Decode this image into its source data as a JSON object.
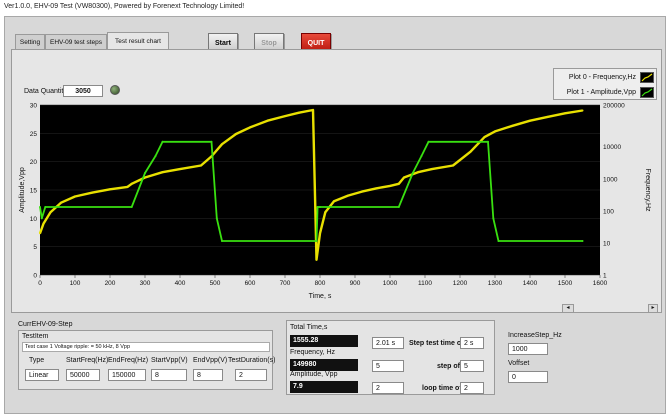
{
  "window": {
    "title": "Ver1.0.0, EHV-09 Test (VW80300), Powered by Forenext Technology Limited!"
  },
  "toolbar": {
    "start_label": "Start",
    "stop_label": "Stop",
    "quit_label": "QUIT"
  },
  "tabs": [
    {
      "label": "Setting",
      "active": false
    },
    {
      "label": "EHV-09 test steps",
      "active": false
    },
    {
      "label": "Test result chart",
      "active": true
    }
  ],
  "data_quantity": {
    "label": "Data Quantity",
    "value": "3050"
  },
  "legend": [
    {
      "label": "Plot 0 - Frequency,Hz",
      "color": "#e8e000"
    },
    {
      "label": "Plot 1 - Amplitude,Vpp",
      "color": "#39e010"
    }
  ],
  "chart_data": {
    "type": "line",
    "title": "",
    "xlabel": "Time, s",
    "ylabel_left": "Amplitude,Vpp",
    "ylabel_right": "Frequency,Hz",
    "xlim": [
      0,
      1600
    ],
    "ylim_left": [
      0,
      30
    ],
    "ylim_right": [
      1,
      200000
    ],
    "right_scale": "log",
    "x_ticks": [
      "0",
      "100",
      "200",
      "300",
      "400",
      "500",
      "600",
      "700",
      "800",
      "900",
      "1000",
      "1100",
      "1200",
      "1300",
      "1400",
      "1500",
      "1600"
    ],
    "y_left_ticks": [
      "0",
      "5",
      "10",
      "15",
      "20",
      "25",
      "30"
    ],
    "y_right_ticks": [
      "1",
      "10",
      "100",
      "1000",
      "10000",
      "200000"
    ],
    "background": "#000000",
    "series": [
      {
        "name": "Plot 0 - Frequency,Hz",
        "color": "#e8e000",
        "axis": "right",
        "x": [
          0,
          10,
          30,
          60,
          100,
          150,
          200,
          250,
          262,
          300,
          350,
          400,
          460,
          490,
          520,
          560,
          600,
          650,
          700,
          740,
          780,
          790,
          800,
          815,
          840,
          880,
          920,
          960,
          1000,
          1025,
          1040,
          1080,
          1120,
          1180,
          1230,
          1270,
          1300,
          1350,
          1400,
          1450,
          1500,
          1550
        ],
        "y": [
          20,
          40,
          90,
          180,
          280,
          370,
          470,
          560,
          700,
          1100,
          1600,
          2000,
          2600,
          5000,
          12000,
          25000,
          40000,
          65000,
          90000,
          115000,
          140000,
          3,
          20,
          90,
          200,
          300,
          400,
          500,
          600,
          700,
          1100,
          1600,
          2000,
          2600,
          7000,
          20000,
          30000,
          45000,
          65000,
          85000,
          110000,
          135000
        ]
      },
      {
        "name": "Plot 1 - Amplitude,Vpp",
        "color": "#39e010",
        "axis": "left",
        "x": [
          0,
          5,
          15,
          262,
          300,
          330,
          350,
          490,
          505,
          520,
          790,
          793,
          800,
          1025,
          1065,
          1090,
          1110,
          1280,
          1295,
          1310,
          1550
        ],
        "y": [
          12,
          10,
          12,
          12,
          18,
          21,
          23.5,
          23.5,
          10,
          6,
          6,
          12,
          12,
          12,
          18,
          21,
          23.5,
          23.5,
          10,
          6,
          6
        ]
      }
    ]
  },
  "step_panel": {
    "title": "CurrEHV-09-Step",
    "testitem_label": "TestItem",
    "testitem_desc": "Test case 1 Voltage ripple: = 50 kHz, 8 Vpp",
    "headers": [
      "Type",
      "StartFreq(Hz)",
      "EndFreq(Hz)",
      "StartVpp(V)",
      "EndVpp(V)",
      "TestDuration(s)"
    ],
    "values": [
      "Linear",
      "50000",
      "150000",
      "8",
      "8",
      "2"
    ]
  },
  "time_panel": {
    "total_time_label": "Total Time,s",
    "total_time_value": "1555.28",
    "frequency_label": "Frequency, Hz",
    "frequency_value": "149980",
    "amplitude_label": "Amplitude, Vpp",
    "amplitude_value": "7.9",
    "box1_value": "2.01 s",
    "box2_value": "5",
    "box3_value": "2",
    "step_test_time_label": "Step test time of",
    "step_test_time_value": "2 s",
    "step_of_label": "step of",
    "step_of_value": "5",
    "loop_time_label": "loop time of",
    "loop_time_value": "2"
  },
  "increase_panel": {
    "inc_label": "IncreaseStep_Hz",
    "inc_value": "1000",
    "voffset_label": "Voffset",
    "voffset_value": "0"
  }
}
